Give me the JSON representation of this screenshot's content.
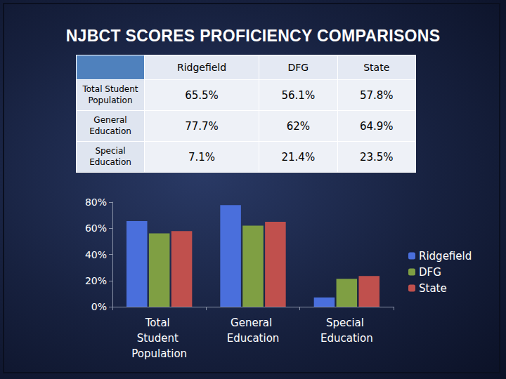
{
  "title": "NJBCT SCORES PROFICIENCY COMPARISONS",
  "table": {
    "header": [
      "Ridgefield",
      "DFG",
      "State"
    ],
    "rows": [
      [
        "Total Student Population",
        "65.5%",
        "56.1%",
        "57.8%"
      ],
      [
        "General Education",
        "77.7%",
        "62%",
        "64.9%"
      ],
      [
        "Special Education",
        "7.1%",
        "21.4%",
        "23.5%"
      ]
    ]
  },
  "chart_data": {
    "type": "bar",
    "categories": [
      "Total Student Population",
      "General Education",
      "Special Education"
    ],
    "series": [
      {
        "name": "Ridgefield",
        "color": "#4a6fdc",
        "values": [
          65.5,
          77.7,
          7.1
        ]
      },
      {
        "name": "DFG",
        "color": "#7f9f43",
        "values": [
          56.1,
          62,
          21.4
        ]
      },
      {
        "name": "State",
        "color": "#c0504d",
        "values": [
          57.8,
          64.9,
          23.5
        ]
      }
    ],
    "ylim": [
      0,
      80
    ],
    "yticks": [
      {
        "value": 0,
        "label": "0%"
      },
      {
        "value": 20,
        "label": "20%"
      },
      {
        "value": 40,
        "label": "40%"
      },
      {
        "value": 60,
        "label": "60%"
      },
      {
        "value": 80,
        "label": "80%"
      }
    ],
    "grid": false,
    "legend": "right"
  }
}
